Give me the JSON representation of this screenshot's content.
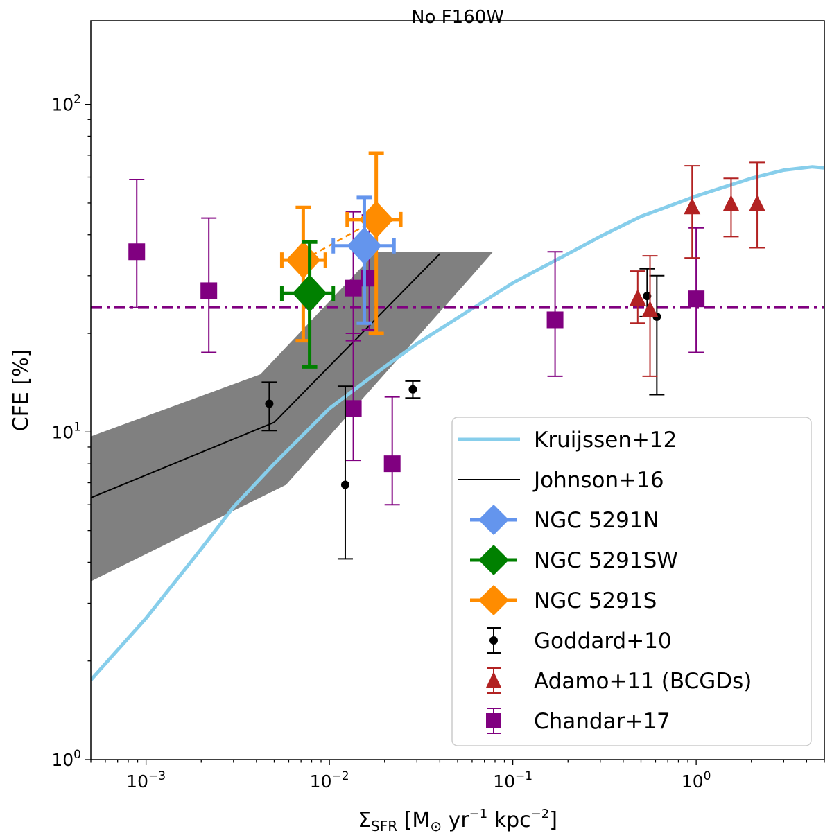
{
  "chart_data": {
    "type": "scatter",
    "title": "No F160W",
    "xscale": "log",
    "yscale": "log",
    "xlim": [
      0.0005,
      5.0
    ],
    "ylim": [
      1,
      180
    ],
    "xlabel": {
      "main": "Σ",
      "sub": "SFR",
      "units": " [M",
      "sun": "⊙",
      "yr": " yr",
      "e1": "−1",
      "kpc": " kpc",
      "e2": "−2",
      "end": "]"
    },
    "ylabel": "CFE [%]",
    "xticks": [
      {
        "value": 0.001,
        "base": "10",
        "exp": "−3"
      },
      {
        "value": 0.01,
        "base": "10",
        "exp": "−2"
      },
      {
        "value": 0.1,
        "base": "10",
        "exp": "−1"
      },
      {
        "value": 1,
        "base": "10",
        "exp": "0"
      }
    ],
    "yticks": [
      {
        "value": 1,
        "base": "10",
        "exp": "0"
      },
      {
        "value": 10,
        "base": "10",
        "exp": "1"
      },
      {
        "value": 100,
        "base": "10",
        "exp": "2"
      }
    ],
    "colors": {
      "kruijssen": "#87ceeb",
      "johnson": "#000000",
      "johnson_band": "#808080",
      "n5291n": "#6495ed",
      "n5291sw": "#008000",
      "n5291s": "#ff8c00",
      "goddard": "#000000",
      "adamo": "#b22222",
      "chandar": "#800080"
    },
    "chandar_median": 24,
    "kruijssen_curve": [
      [
        0.0005,
        1.75
      ],
      [
        0.001,
        2.7
      ],
      [
        0.002,
        4.4
      ],
      [
        0.003,
        5.9
      ],
      [
        0.005,
        8.0
      ],
      [
        0.01,
        11.8
      ],
      [
        0.02,
        15.8
      ],
      [
        0.03,
        18.6
      ],
      [
        0.05,
        22.3
      ],
      [
        0.1,
        28.5
      ],
      [
        0.2,
        35.0
      ],
      [
        0.3,
        39.5
      ],
      [
        0.5,
        45.5
      ],
      [
        1.0,
        52.5
      ],
      [
        2.0,
        59.5
      ],
      [
        3.0,
        63.0
      ],
      [
        4.3,
        64.5
      ],
      [
        5.0,
        64.0
      ]
    ],
    "johnson_line": [
      [
        0.0005,
        6.3
      ],
      [
        0.005,
        10.7
      ],
      [
        0.04,
        35.0
      ]
    ],
    "johnson_band": {
      "upper": [
        [
          0.0005,
          9.7
        ],
        [
          0.0042,
          15.0
        ],
        [
          0.018,
          35.5
        ],
        [
          0.078,
          35.5
        ]
      ],
      "lower": [
        [
          0.0005,
          3.5
        ],
        [
          0.0058,
          6.9
        ],
        [
          0.06,
          30.0
        ],
        [
          0.078,
          35.5
        ]
      ]
    },
    "series": [
      {
        "name": "Kruijssen+12",
        "kind": "curve"
      },
      {
        "name": "Johnson+16",
        "kind": "line"
      },
      {
        "name": "NGC 5291N",
        "kind": "diamond",
        "points": [
          {
            "x": 0.0155,
            "y": 37,
            "xerr": [
              0.0105,
              0.0225
            ],
            "yerr": [
              21.5,
              52
            ]
          }
        ]
      },
      {
        "name": "NGC 5291SW",
        "kind": "diamond",
        "points": [
          {
            "x": 0.0078,
            "y": 26.5,
            "xerr": [
              0.0055,
              0.0105
            ],
            "yerr": [
              15.8,
              38
            ]
          }
        ]
      },
      {
        "name": "NGC 5291S",
        "kind": "diamond",
        "points": [
          {
            "x": 0.0072,
            "y": 33.5,
            "xerr": [
              0.0055,
              0.0095
            ],
            "yerr": [
              19,
              48.5
            ]
          },
          {
            "x": 0.018,
            "y": 44.5,
            "xerr": [
              0.0125,
              0.0245
            ],
            "yerr": [
              20,
              71
            ]
          }
        ]
      },
      {
        "name": "Goddard+10",
        "kind": "circle",
        "points": [
          {
            "x": 0.0047,
            "y": 12.2,
            "yerr": [
              10.1,
              14.2
            ]
          },
          {
            "x": 0.0122,
            "y": 6.9,
            "yerr": [
              4.1,
              13.8
            ]
          },
          {
            "x": 0.0285,
            "y": 13.5,
            "yerr": [
              12.7,
              14.3
            ]
          },
          {
            "x": 0.54,
            "y": 26,
            "yerr": [
              22.5,
              31.5
            ]
          },
          {
            "x": 0.61,
            "y": 22.5,
            "yerr": [
              13,
              30
            ]
          }
        ]
      },
      {
        "name": "Adamo+11 (BCGDs)",
        "kind": "triangle",
        "points": [
          {
            "x": 0.48,
            "y": 25.5,
            "yerr": [
              21.5,
              31
            ]
          },
          {
            "x": 0.56,
            "y": 23.5,
            "yerr": [
              14.8,
              34.5
            ]
          },
          {
            "x": 0.95,
            "y": 48.5,
            "yerr": [
              34,
              65
            ]
          },
          {
            "x": 1.55,
            "y": 49.5,
            "yerr": [
              39.5,
              59.5
            ]
          },
          {
            "x": 2.15,
            "y": 49.5,
            "yerr": [
              36.5,
              66.5
            ]
          }
        ]
      },
      {
        "name": "Chandar+17",
        "kind": "square",
        "points": [
          {
            "x": 0.00089,
            "y": 35.5,
            "yerr": [
              24,
              59
            ]
          },
          {
            "x": 0.0022,
            "y": 27,
            "yerr": [
              17.5,
              45
            ]
          },
          {
            "x": 0.0135,
            "y": 27.5,
            "yerr": [
              19,
              47
            ]
          },
          {
            "x": 0.0165,
            "y": 29.5,
            "yerr": [
              20.5,
              46
            ]
          },
          {
            "x": 0.0135,
            "y": 11.8,
            "yerr": [
              8.2,
              20
            ]
          },
          {
            "x": 0.022,
            "y": 8.0,
            "yerr": [
              6.0,
              12.8
            ]
          },
          {
            "x": 0.17,
            "y": 22,
            "yerr": [
              14.8,
              35.5
            ]
          },
          {
            "x": 1.0,
            "y": 25.5,
            "yerr": [
              17.5,
              42
            ]
          }
        ]
      }
    ]
  }
}
